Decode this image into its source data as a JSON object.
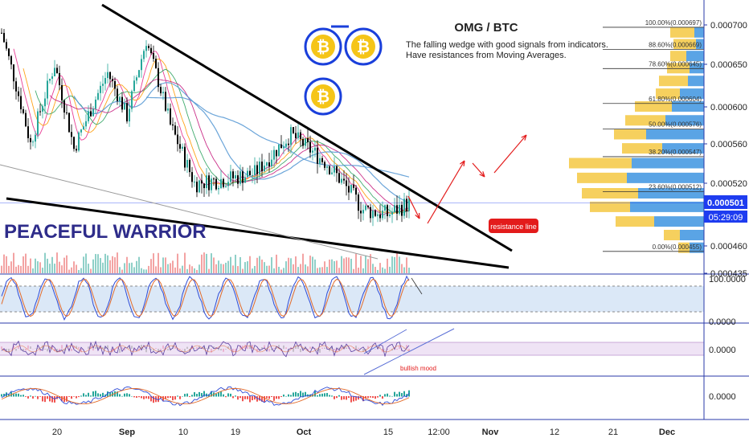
{
  "chart_data": {
    "type": "candlestick",
    "title": "OMG / BTC",
    "description_lines": [
      "The falling wedge with good signals from indicators.",
      "Have resistances from Moving Averages."
    ],
    "watermark": "PEACEFUL WARRIOR",
    "x_ticks": [
      "20",
      "Sep",
      "10",
      "19",
      "Oct",
      "15",
      "12:00",
      "Nov",
      "12",
      "21",
      "Dec"
    ],
    "y_ticks": [
      "0.000700",
      "0.000650",
      "0.000600",
      "0.000560",
      "0.000520",
      "0.000460",
      "0.000435"
    ],
    "ylim": [
      0.000435,
      0.000715
    ],
    "price_last": {
      "price": "0.000501",
      "timer": "05:29:09"
    },
    "fibonacci_levels": [
      {
        "label": "100.00%(0.000697)",
        "value": 0.000697
      },
      {
        "label": "88.60%(0.000669)",
        "value": 0.000669
      },
      {
        "label": "78.60%(0.000645)",
        "value": 0.000645
      },
      {
        "label": "61.80%(0.000604)",
        "value": 0.000604
      },
      {
        "label": "50.00%(0.000576)",
        "value": 0.000576
      },
      {
        "label": "38.20%(0.000547)",
        "value": 0.000547
      },
      {
        "label": "23.60%(0.000512)",
        "value": 0.000512
      },
      {
        "label": "0.00%(0.000455)",
        "value": 0.000455
      }
    ],
    "annotations": {
      "resistance_label": "resistance line",
      "bullish_label": "bullish mood"
    },
    "stoch_panel": {
      "ticks": [
        "100.0000",
        "0.0000"
      ]
    },
    "rsi_panel": {
      "ticks": [
        "0.0000"
      ]
    },
    "macd_panel": {
      "ticks": [
        "0.0000"
      ]
    },
    "colors": {
      "up": "#26a69a",
      "down": "#000000",
      "ma_blue": "#5b9bd5",
      "price_badge": "#1e3cf0",
      "panel_border": "#2a3aa8",
      "resistance_badge": "#e31b1b",
      "coin": "#f5c518"
    }
  }
}
